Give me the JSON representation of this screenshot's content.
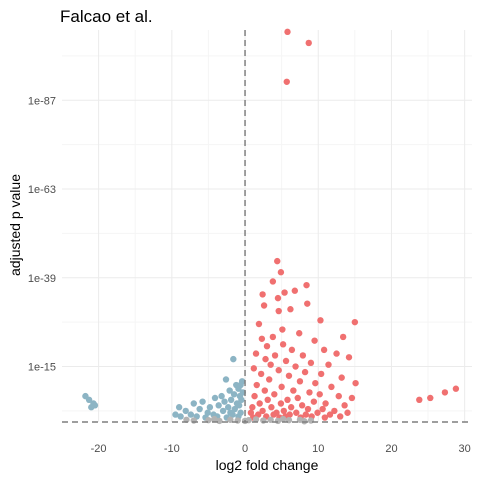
{
  "chart_data": {
    "type": "scatter",
    "title": "Falcao et al.",
    "xlabel": "log2 fold change",
    "ylabel": "adjusted p value",
    "x_ticks": [
      -20,
      -10,
      0,
      10,
      20,
      30
    ],
    "x_tick_labels": [
      "-20",
      "-10",
      "0",
      "10",
      "20",
      "30"
    ],
    "xlim": [
      -25,
      31
    ],
    "y_scale": "log10 reversed (-log10 adjusted p)",
    "y_ticks_exponent": [
      15,
      39,
      63,
      87
    ],
    "y_tick_labels": [
      "1e-15",
      "1e-39",
      "1e-63",
      "1e-87"
    ],
    "ylim_neg_log10": [
      0,
      106
    ],
    "grid": true,
    "legend": "none",
    "reference_lines": {
      "vertical_x": 0,
      "horizontal_neg_log10_p": 0
    },
    "colors": {
      "upregulated": "#f07070",
      "downregulated": "#8cb4c4",
      "not_significant": "#b3b3b3",
      "reference_line": "#7f7f7f",
      "grid": "#ebebeb"
    },
    "series": [
      {
        "color": "#f07070",
        "points": [
          [
            5.8,
            105.5
          ],
          [
            8.7,
            102.5
          ],
          [
            5.7,
            92.0
          ],
          [
            4.4,
            43.5
          ],
          [
            4.9,
            40.5
          ],
          [
            3.8,
            38.0
          ],
          [
            8.4,
            37.0
          ],
          [
            5.4,
            35.0
          ],
          [
            2.4,
            34.5
          ],
          [
            6.8,
            35.5
          ],
          [
            4.5,
            33.5
          ],
          [
            8.5,
            32.0
          ],
          [
            2.6,
            31.5
          ],
          [
            4.6,
            30.0
          ],
          [
            6.2,
            30.5
          ],
          [
            15.0,
            27.0
          ],
          [
            10.3,
            27.5
          ],
          [
            1.9,
            26.5
          ],
          [
            5.1,
            25.0
          ],
          [
            7.4,
            24.0
          ],
          [
            3.8,
            23.0
          ],
          [
            13.4,
            23.0
          ],
          [
            2.3,
            22.5
          ],
          [
            9.5,
            22.0
          ],
          [
            5.2,
            21.0
          ],
          [
            3.0,
            20.5
          ],
          [
            6.4,
            19.5
          ],
          [
            10.8,
            19.5
          ],
          [
            1.5,
            18.5
          ],
          [
            4.1,
            18.0
          ],
          [
            7.9,
            18.0
          ],
          [
            12.5,
            18.5
          ],
          [
            14.2,
            17.5
          ],
          [
            2.8,
            17.0
          ],
          [
            5.6,
            16.5
          ],
          [
            9.0,
            16.0
          ],
          [
            3.5,
            15.5
          ],
          [
            6.9,
            15.0
          ],
          [
            11.4,
            15.5
          ],
          [
            1.2,
            14.5
          ],
          [
            4.6,
            14.0
          ],
          [
            8.2,
            13.5
          ],
          [
            10.4,
            13.0
          ],
          [
            2.2,
            13.0
          ],
          [
            6.0,
            12.5
          ],
          [
            13.2,
            12.0
          ],
          [
            3.3,
            11.5
          ],
          [
            7.5,
            11.0
          ],
          [
            15.1,
            10.5
          ],
          [
            9.6,
            10.5
          ],
          [
            1.6,
            10.0
          ],
          [
            5.0,
            9.5
          ],
          [
            11.8,
            9.5
          ],
          [
            2.7,
            8.5
          ],
          [
            6.6,
            8.5
          ],
          [
            8.8,
            8.0
          ],
          [
            4.0,
            7.5
          ],
          [
            10.2,
            7.5
          ],
          [
            1.3,
            7.0
          ],
          [
            12.8,
            7.0
          ],
          [
            7.2,
            6.5
          ],
          [
            14.6,
            6.5
          ],
          [
            3.1,
            6.0
          ],
          [
            5.8,
            6.0
          ],
          [
            9.4,
            5.5
          ],
          [
            2.0,
            5.0
          ],
          [
            4.9,
            5.0
          ],
          [
            11.0,
            5.0
          ],
          [
            7.8,
            4.5
          ],
          [
            13.6,
            4.5
          ],
          [
            1.0,
            4.0
          ],
          [
            3.6,
            4.0
          ],
          [
            6.3,
            4.0
          ],
          [
            8.6,
            3.5
          ],
          [
            10.6,
            3.5
          ],
          [
            2.4,
            3.0
          ],
          [
            5.3,
            3.0
          ],
          [
            12.2,
            3.0
          ],
          [
            0.8,
            2.5
          ],
          [
            4.3,
            2.5
          ],
          [
            7.0,
            2.5
          ],
          [
            9.9,
            2.5
          ],
          [
            14.0,
            2.5
          ],
          [
            1.8,
            2.0
          ],
          [
            3.9,
            2.0
          ],
          [
            6.1,
            2.0
          ],
          [
            8.3,
            2.0
          ],
          [
            11.6,
            2.0
          ],
          [
            2.9,
            1.5
          ],
          [
            5.5,
            1.5
          ],
          [
            9.1,
            1.5
          ],
          [
            13.0,
            1.5
          ],
          [
            1.1,
            1.2
          ],
          [
            4.7,
            1.2
          ],
          [
            7.6,
            1.2
          ],
          [
            10.9,
            1.2
          ],
          [
            23.8,
            6.0
          ],
          [
            25.3,
            6.5
          ],
          [
            27.3,
            8.0
          ],
          [
            28.8,
            9.0
          ]
        ]
      },
      {
        "color": "#8cb4c4",
        "points": [
          [
            -1.6,
            17.0
          ],
          [
            -2.6,
            11.5
          ],
          [
            -0.4,
            11.0
          ],
          [
            -0.6,
            10.0
          ],
          [
            -1.2,
            10.0
          ],
          [
            -0.9,
            9.0
          ],
          [
            -2.1,
            8.5
          ],
          [
            -0.3,
            8.0
          ],
          [
            -1.5,
            7.5
          ],
          [
            -3.2,
            7.0
          ],
          [
            -0.7,
            7.0
          ],
          [
            -4.1,
            6.5
          ],
          [
            -1.9,
            6.0
          ],
          [
            -0.5,
            6.0
          ],
          [
            -5.8,
            5.5
          ],
          [
            -2.8,
            5.5
          ],
          [
            -1.1,
            5.0
          ],
          [
            -7.0,
            5.0
          ],
          [
            -3.6,
            4.5
          ],
          [
            -0.8,
            4.5
          ],
          [
            -4.8,
            4.0
          ],
          [
            -2.3,
            4.0
          ],
          [
            -9.0,
            4.0
          ],
          [
            -6.2,
            3.5
          ],
          [
            -1.4,
            3.5
          ],
          [
            -3.0,
            3.0
          ],
          [
            -8.1,
            3.0
          ],
          [
            -5.1,
            2.5
          ],
          [
            -0.6,
            2.5
          ],
          [
            -2.0,
            2.5
          ],
          [
            -9.5,
            2.0
          ],
          [
            -7.4,
            2.0
          ],
          [
            -4.3,
            2.0
          ],
          [
            -1.7,
            2.0
          ],
          [
            -3.8,
            1.5
          ],
          [
            -6.6,
            1.5
          ],
          [
            -8.8,
            1.5
          ],
          [
            -0.9,
            1.5
          ],
          [
            -2.5,
            1.2
          ],
          [
            -5.4,
            1.2
          ],
          [
            -21.8,
            7.0
          ],
          [
            -21.3,
            6.0
          ],
          [
            -20.7,
            5.0
          ],
          [
            -21.0,
            4.0
          ],
          [
            -20.5,
            4.5
          ]
        ]
      },
      {
        "color": "#b3b3b3",
        "points": [
          [
            -5.0,
            0.5
          ],
          [
            -3.5,
            0.3
          ],
          [
            -2.0,
            0.6
          ],
          [
            -1.0,
            0.4
          ],
          [
            0.5,
            0.5
          ],
          [
            1.5,
            0.7
          ],
          [
            2.5,
            0.4
          ],
          [
            3.5,
            0.6
          ],
          [
            4.5,
            0.3
          ],
          [
            6.0,
            0.5
          ],
          [
            7.5,
            0.6
          ],
          [
            9.0,
            0.4
          ],
          [
            -7.0,
            0.4
          ],
          [
            -8.0,
            0.6
          ],
          [
            -4.2,
            0.8
          ],
          [
            0.0,
            0.3
          ],
          [
            5.2,
            0.8
          ],
          [
            8.1,
            0.2
          ]
        ]
      }
    ]
  }
}
